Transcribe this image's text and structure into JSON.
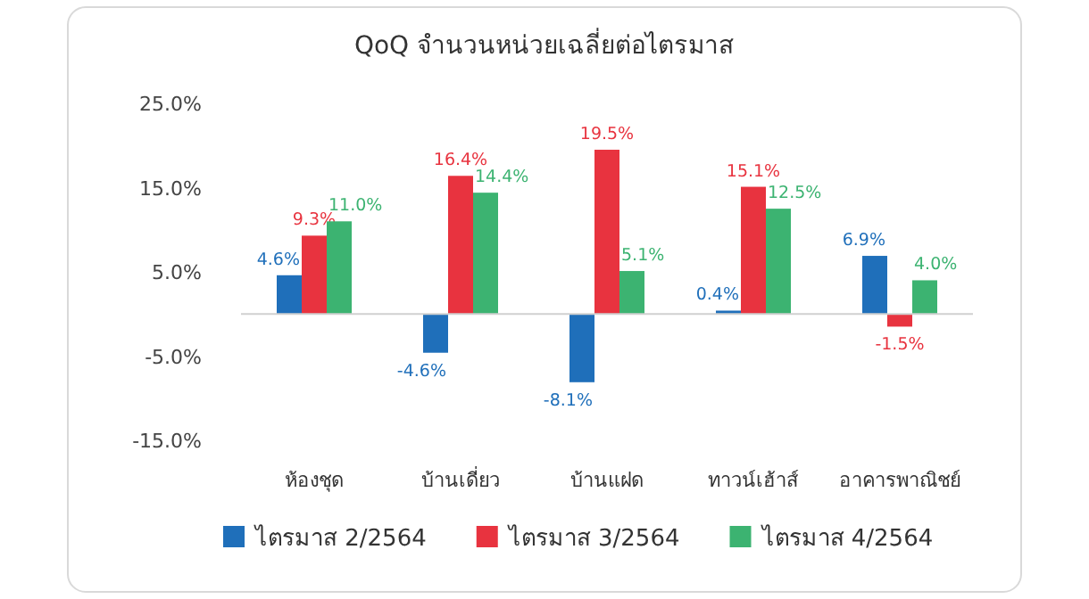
{
  "chart_data": {
    "type": "bar",
    "title": "QoQ จำนวนหน่วยเฉลี่ยต่อไตรมาส",
    "categories": [
      "ห้องชุด",
      "บ้านเดี่ยว",
      "บ้านแฝด",
      "ทาวน์เฮ้าส์",
      "อาคารพาณิชย์"
    ],
    "series": [
      {
        "name": "ไตรมาส 2/2564",
        "color": "#1f6fba",
        "values": [
          4.6,
          -4.6,
          -8.1,
          0.4,
          6.9
        ],
        "value_labels": [
          "4.6%",
          "-4.6%",
          "-8.1%",
          "0.4%",
          "6.9%"
        ]
      },
      {
        "name": "ไตรมาส 3/2564",
        "color": "#e8333f",
        "values": [
          9.3,
          16.4,
          19.5,
          15.1,
          -1.5
        ],
        "value_labels": [
          "9.3%",
          "16.4%",
          "19.5%",
          "15.1%",
          "-1.5%"
        ]
      },
      {
        "name": "ไตรมาส 4/2564",
        "color": "#3cb371",
        "values": [
          11.0,
          14.4,
          5.1,
          12.5,
          4.0
        ],
        "value_labels": [
          "11.0%",
          "14.4%",
          "5.1%",
          "12.5%",
          "4.0%"
        ]
      }
    ],
    "ylim": [
      -15,
      25
    ],
    "yticks": [
      {
        "value": -15,
        "label": "-15.0%"
      },
      {
        "value": -5,
        "label": "-5.0%"
      },
      {
        "value": 5,
        "label": "5.0%"
      },
      {
        "value": 15,
        "label": "15.0%"
      },
      {
        "value": 25,
        "label": "25.0%"
      }
    ],
    "grid": false,
    "legend": "bottom"
  }
}
